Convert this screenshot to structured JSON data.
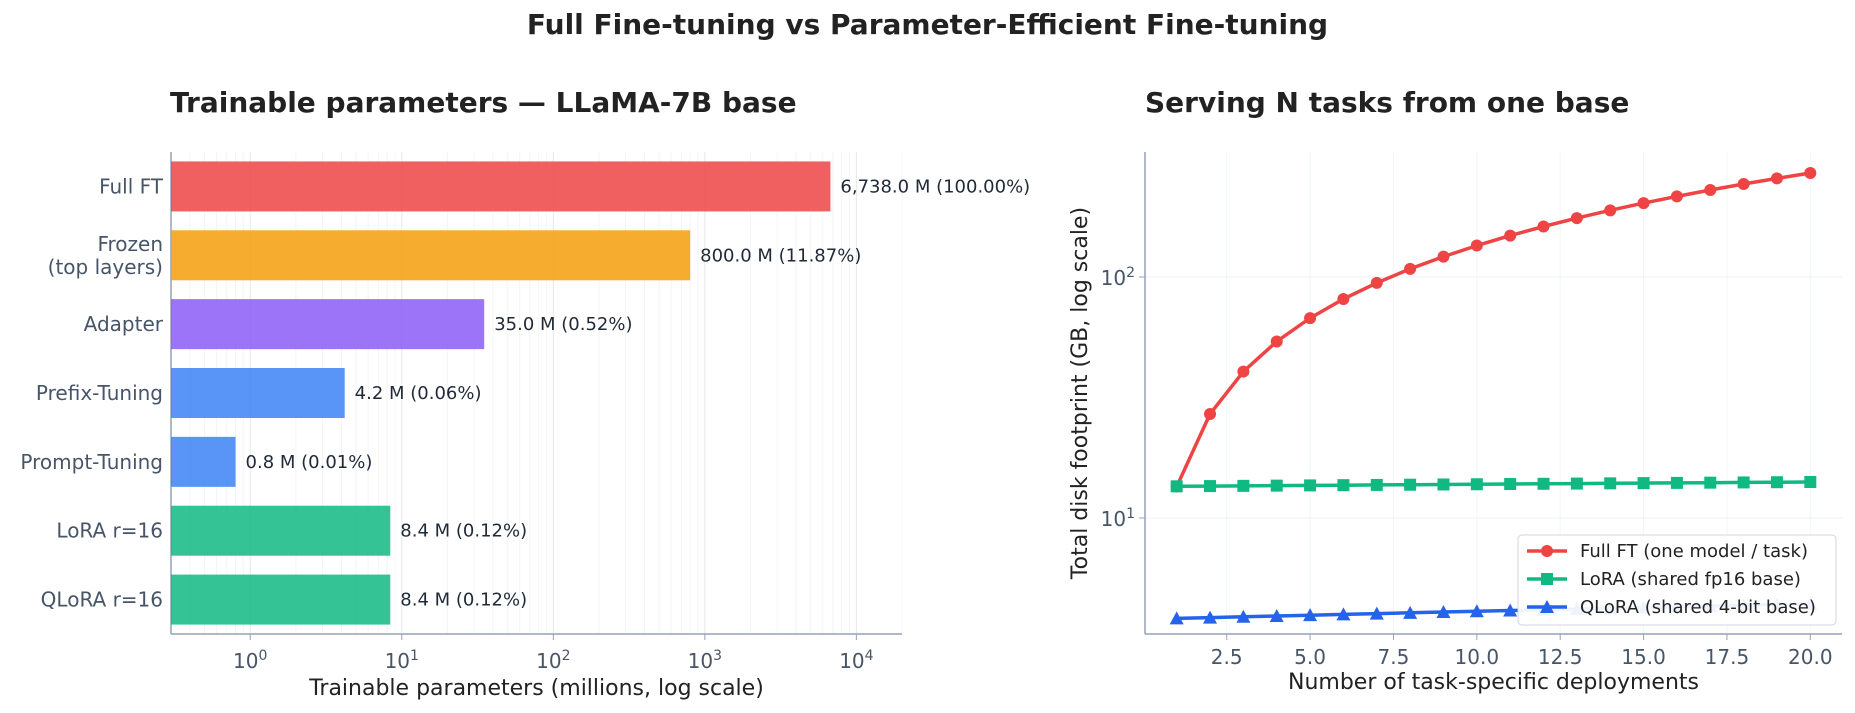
{
  "figure": {
    "suptitle": "Full Fine-tuning vs Parameter-Efficient Fine-tuning"
  },
  "chart_data": [
    {
      "type": "bar",
      "orientation": "horizontal",
      "title": "Trainable parameters — LLaMA-7B base",
      "xlabel": "Trainable parameters (millions, log scale)",
      "ylabel": "",
      "xscale": "log",
      "xlim": [
        0.3,
        20000
      ],
      "grid": "x",
      "xticks": [
        {
          "value": 1,
          "base": "10",
          "exp": "0"
        },
        {
          "value": 10,
          "base": "10",
          "exp": "1"
        },
        {
          "value": 100,
          "base": "10",
          "exp": "2"
        },
        {
          "value": 1000,
          "base": "10",
          "exp": "3"
        },
        {
          "value": 10000,
          "base": "10",
          "exp": "4"
        }
      ],
      "categories": [
        {
          "lines": [
            "Full FT"
          ]
        },
        {
          "lines": [
            "Frozen",
            "(top layers)"
          ]
        },
        {
          "lines": [
            "Adapter"
          ]
        },
        {
          "lines": [
            "Prefix-Tuning"
          ]
        },
        {
          "lines": [
            "Prompt-Tuning"
          ]
        },
        {
          "lines": [
            "LoRA r=16"
          ]
        },
        {
          "lines": [
            "QLoRA r=16"
          ]
        }
      ],
      "values": [
        6738.0,
        800.0,
        35.0,
        4.2,
        0.8,
        8.4,
        8.4
      ],
      "data_labels": [
        "6,738.0 M  (100.00%)",
        "800.0 M  (11.87%)",
        "35.0 M  (0.52%)",
        "4.2 M  (0.06%)",
        "0.8 M  (0.01%)",
        "8.4 M  (0.12%)",
        "8.4 M  (0.12%)"
      ],
      "colors": [
        "#ef4444",
        "#f59e0b",
        "#8b5cf6",
        "#3b82f6",
        "#3b82f6",
        "#10b981",
        "#10b981"
      ]
    },
    {
      "type": "line",
      "title": "Serving N tasks from one base",
      "xlabel": "Number of task-specific deployments",
      "ylabel": "Total disk footprint (GB, log scale)",
      "yscale": "log",
      "xlim": [
        0.05,
        20.95
      ],
      "ylim": [
        3.3,
        330
      ],
      "grid": "both",
      "xticks": [
        "2.5",
        "5.0",
        "7.5",
        "10.0",
        "12.5",
        "15.0",
        "17.5",
        "20.0"
      ],
      "yticks": [
        {
          "value": 10,
          "base": "10",
          "exp": "1"
        },
        {
          "value": 100,
          "base": "10",
          "exp": "2"
        }
      ],
      "legend_position": "lower-right",
      "x": [
        1,
        2,
        3,
        4,
        5,
        6,
        7,
        8,
        9,
        10,
        11,
        12,
        13,
        14,
        15,
        16,
        17,
        18,
        19,
        20
      ],
      "series": [
        {
          "name": "Full FT (one model / task)",
          "color": "#ef4444",
          "marker": "circle",
          "values": [
            13.5,
            27,
            40.5,
            54,
            67.5,
            81,
            94.5,
            108,
            121.5,
            135,
            148.5,
            162,
            175.5,
            189,
            202.5,
            216,
            229.5,
            243,
            256.5,
            270
          ]
        },
        {
          "name": "LoRA (shared fp16 base)",
          "color": "#10b981",
          "marker": "square",
          "values": [
            13.53,
            13.56,
            13.59,
            13.62,
            13.65,
            13.68,
            13.71,
            13.74,
            13.77,
            13.8,
            13.83,
            13.86,
            13.89,
            13.92,
            13.95,
            13.98,
            14.01,
            14.04,
            14.07,
            14.1
          ]
        },
        {
          "name": "QLoRA (shared 4-bit base)",
          "color": "#2563eb",
          "marker": "triangle",
          "values": [
            3.83,
            3.86,
            3.89,
            3.92,
            3.95,
            3.98,
            4.01,
            4.04,
            4.07,
            4.1,
            4.13,
            4.16,
            4.19,
            4.22,
            4.25,
            4.28,
            4.31,
            4.34,
            4.37,
            4.4
          ]
        }
      ]
    }
  ]
}
